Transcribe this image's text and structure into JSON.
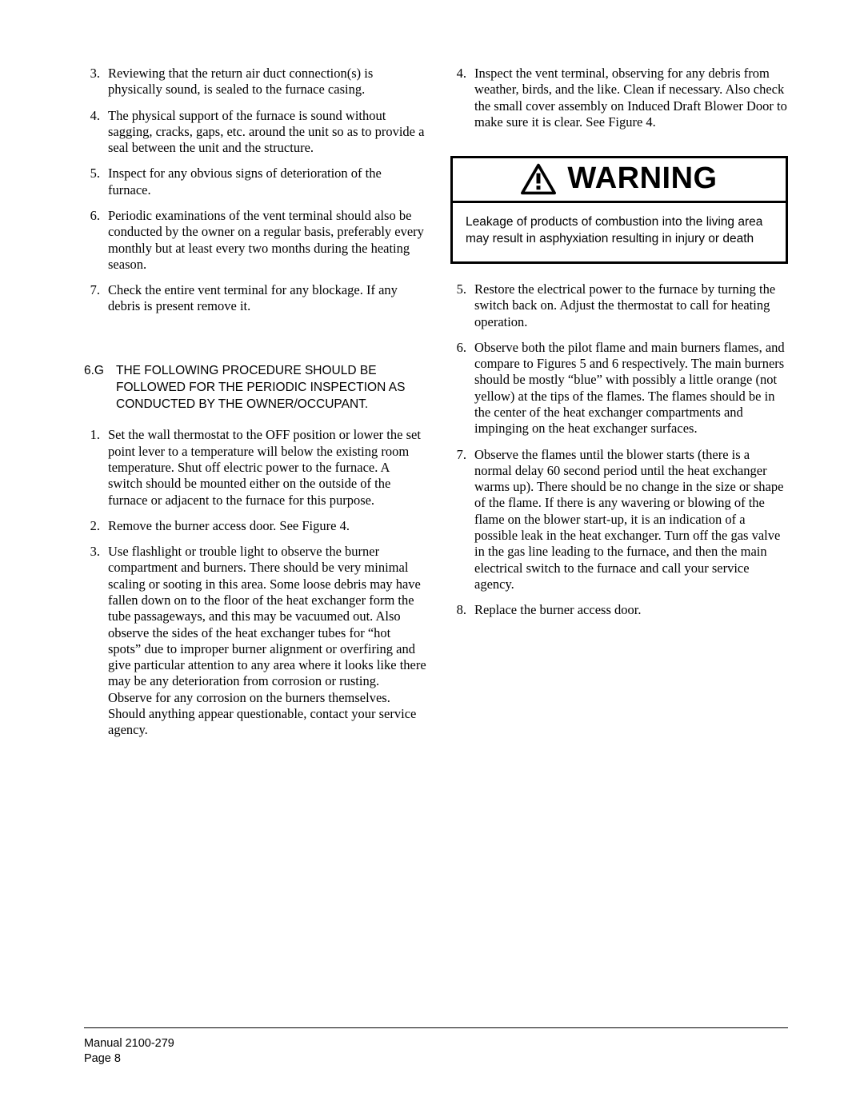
{
  "left_list_a": [
    {
      "n": "3.",
      "text": "Reviewing that the return air duct connection(s) is physically sound, is sealed to the furnace casing."
    },
    {
      "n": "4.",
      "text": "The physical support of the furnace is sound without sagging, cracks, gaps, etc. around the unit so as to provide a seal between the unit and the structure."
    },
    {
      "n": "5.",
      "text": "Inspect for any obvious signs of deterioration of the furnace."
    },
    {
      "n": "6.",
      "text": "Periodic examinations of the vent terminal should also be conducted by the owner on a regular basis, preferably every monthly but at least every two months during the heating season."
    },
    {
      "n": "7.",
      "text": "Check the entire vent terminal  for any blockage.  If any debris is present remove it."
    }
  ],
  "section": {
    "num": "6.G",
    "title": "THE FOLLOWING PROCEDURE SHOULD BE FOLLOWED FOR THE PERIODIC INSPECTION AS CONDUCTED BY THE OWNER/OCCUPANT."
  },
  "left_list_b": [
    {
      "n": "1.",
      "text": "Set the wall thermostat to the OFF position or lower the set point lever to a temperature will below the existing room temperature.  Shut off electric power to the furnace.  A switch should be mounted either on the outside of the furnace or adjacent to the furnace for this purpose."
    },
    {
      "n": "2.",
      "text": "Remove the burner access door.  See Figure 4."
    },
    {
      "n": "3.",
      "text": "Use flashlight or trouble light to observe the burner compartment and burners.  There should be very minimal scaling or sooting in this area.  Some loose debris may have fallen down on to the floor of the heat exchanger form the tube passageways, and this may be vacuumed out.  Also observe the sides of the heat exchanger tubes for “hot spots” due to improper burner alignment or overfiring and give particular attention to any area where it looks like there may be any deterioration from corrosion or rusting. Observe for any corrosion on the burners themselves.  Should anything appear questionable, contact your service agency."
    }
  ],
  "right_list_a": [
    {
      "n": "4.",
      "text": "Inspect the vent terminal, observing for any debris from weather, birds, and the like.  Clean if necessary.  Also check the small cover assembly on Induced Draft Blower Door to make sure it is clear.   See Figure 4."
    }
  ],
  "warning": {
    "title": "WARNING",
    "body": "Leakage of products of combustion into the living area may result in asphyxiation resulting in injury or death"
  },
  "right_list_b": [
    {
      "n": "5.",
      "text": "Restore the electrical power to the furnace by turning the switch back on.  Adjust the thermostat to call for heating operation."
    },
    {
      "n": "6.",
      "text": "Observe both the pilot flame and main burners flames, and compare to Figures 5 and 6 respectively.  The main burners should be mostly “blue” with possibly a little orange (not yellow) at the tips of the flames.  The flames should be in the center of the heat exchanger compartments and impinging on the heat exchanger surfaces."
    },
    {
      "n": "7.",
      "text": "Observe the flames until the blower starts (there is a normal delay 60 second period until the heat exchanger warms up). There should be no change in the size or shape of the flame.  If there is any wavering or blowing of the flame on the blower start-up, it is an indication of a possible leak in the heat exchanger.  Turn off the gas valve in the gas line leading to the furnace, and then the main electrical switch to the furnace and call your service agency."
    },
    {
      "n": "8.",
      "text": "Replace the burner access door."
    }
  ],
  "footer": {
    "line1": "Manual  2100-279",
    "line2": "Page   8"
  },
  "colors": {
    "text": "#000000",
    "bg": "#ffffff",
    "border": "#000000"
  }
}
